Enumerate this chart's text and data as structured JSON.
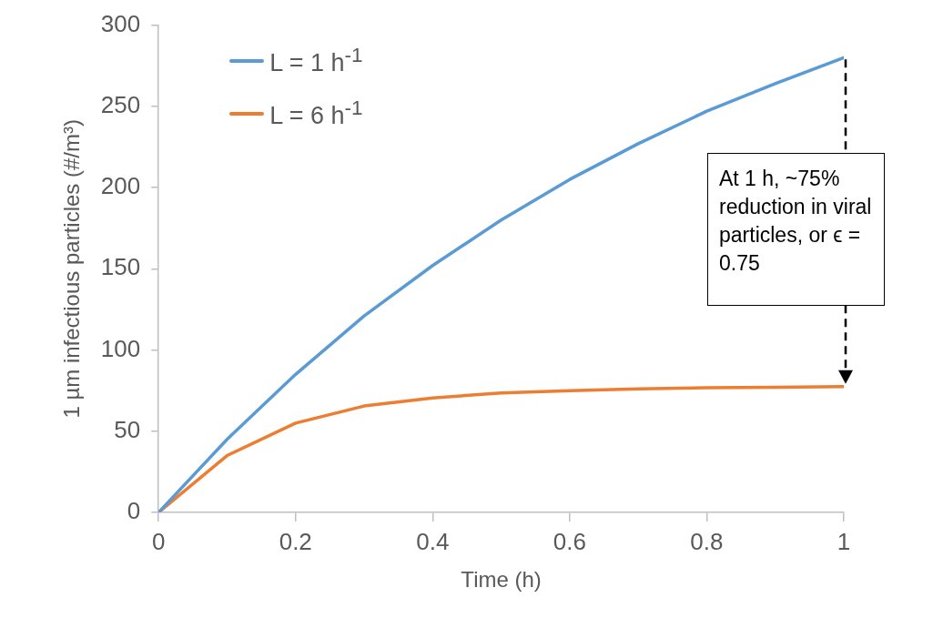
{
  "chart_data": {
    "type": "line",
    "xlabel": "Time (h)",
    "ylabel": "1 µm infectious particles (#/m³)",
    "x": [
      0,
      0.1,
      0.2,
      0.3,
      0.4,
      0.5,
      0.6,
      0.7,
      0.8,
      0.9,
      1
    ],
    "series": [
      {
        "name": "L = 1 h$^{-1}$",
        "color": "#5b9bd5",
        "values": [
          0,
          45,
          85,
          121,
          152,
          180,
          205,
          227,
          247,
          264,
          280
        ]
      },
      {
        "name": "L = 6 h$^{-1}$",
        "color": "#ed7d31",
        "values": [
          0,
          35,
          55,
          65.5,
          70.5,
          73.5,
          75,
          76,
          76.8,
          77,
          77.4
        ]
      }
    ],
    "xlim": [
      0,
      1
    ],
    "xticks": [
      0,
      0.2,
      0.4,
      0.6,
      0.8,
      1
    ],
    "ylim": [
      0,
      300
    ],
    "yticks": [
      0,
      50,
      100,
      150,
      200,
      250,
      300
    ],
    "grid": false,
    "legend": "top left",
    "marker": "none",
    "line_style": "solid",
    "annotations": [
      "At 1 h, ~75% reduction in viral particles, or ϵ = 0.75"
    ]
  }
}
